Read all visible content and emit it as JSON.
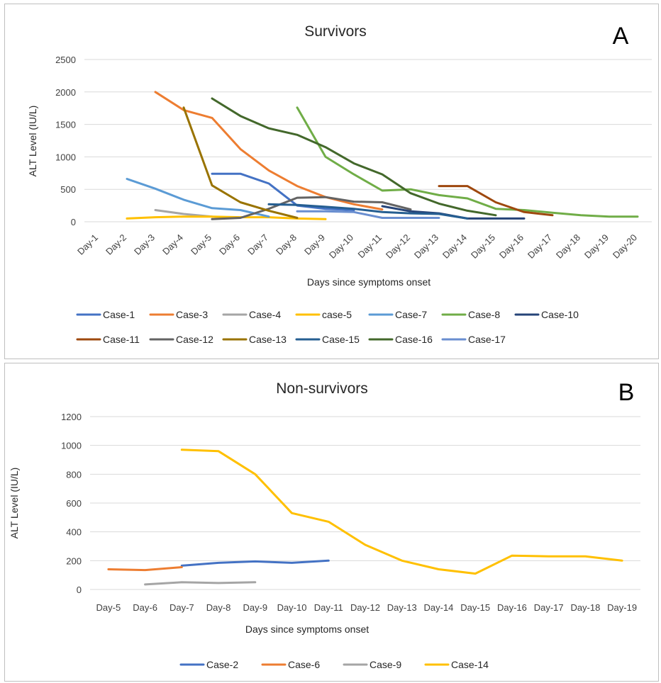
{
  "chart_data": [
    {
      "type": "line",
      "panel_letter": "A",
      "title": "Survivors",
      "xlabel": "Days since symptoms onset",
      "ylabel": "ALT Level (IU/L)",
      "ylim": [
        0,
        2500
      ],
      "yticks": [
        0,
        500,
        1000,
        1500,
        2000,
        2500
      ],
      "grid": true,
      "legend_position": "bottom",
      "categories": [
        "Day-1",
        "Day-2",
        "Day-3",
        "Day-4",
        "Day-5",
        "Day-6",
        "Day-7",
        "Day-8",
        "Day-9",
        "Day-10",
        "Day-11",
        "Day-12",
        "Day-13",
        "Day-14",
        "Day-15",
        "Day-16",
        "Day-17",
        "Day-18",
        "Day-19",
        "Day-20"
      ],
      "series": [
        {
          "name": "Case-1",
          "color": "#4472c4",
          "values": [
            null,
            null,
            null,
            null,
            740,
            740,
            590,
            250,
            200,
            180,
            null,
            null,
            null,
            null,
            null,
            null,
            null,
            null,
            null,
            null
          ]
        },
        {
          "name": "Case-3",
          "color": "#ed7d31",
          "values": [
            null,
            null,
            2000,
            1720,
            1600,
            1120,
            790,
            550,
            380,
            270,
            190,
            null,
            null,
            null,
            null,
            null,
            null,
            null,
            null,
            null
          ]
        },
        {
          "name": "Case-4",
          "color": "#a5a5a5",
          "values": [
            null,
            null,
            180,
            120,
            80,
            null,
            null,
            null,
            null,
            null,
            null,
            null,
            null,
            null,
            null,
            null,
            null,
            null,
            null,
            null
          ]
        },
        {
          "name": "case-5",
          "color": "#ffc000",
          "values": [
            null,
            50,
            70,
            80,
            80,
            70,
            70,
            50,
            40,
            null,
            null,
            null,
            null,
            null,
            null,
            null,
            null,
            null,
            null,
            null
          ]
        },
        {
          "name": "Case-7",
          "color": "#5b9bd5",
          "values": [
            null,
            660,
            510,
            340,
            210,
            180,
            80,
            null,
            null,
            null,
            null,
            null,
            null,
            null,
            null,
            null,
            null,
            null,
            null,
            null
          ]
        },
        {
          "name": "Case-8",
          "color": "#70ad47",
          "values": [
            null,
            null,
            null,
            null,
            null,
            null,
            null,
            1760,
            1000,
            730,
            480,
            500,
            410,
            360,
            200,
            180,
            140,
            100,
            80,
            80
          ]
        },
        {
          "name": "Case-10",
          "color": "#264478",
          "values": [
            null,
            null,
            null,
            null,
            null,
            null,
            null,
            null,
            null,
            null,
            240,
            160,
            130,
            50,
            50,
            50,
            null,
            null,
            null,
            null
          ]
        },
        {
          "name": "Case-11",
          "color": "#9e480e",
          "values": [
            null,
            null,
            null,
            null,
            null,
            null,
            null,
            null,
            null,
            null,
            null,
            null,
            550,
            550,
            300,
            150,
            100,
            null,
            null,
            null
          ]
        },
        {
          "name": "Case-12",
          "color": "#636363",
          "values": [
            null,
            null,
            null,
            null,
            40,
            60,
            200,
            370,
            380,
            310,
            300,
            190,
            null,
            null,
            null,
            null,
            null,
            null,
            null,
            null
          ]
        },
        {
          "name": "Case-13",
          "color": "#997300",
          "values": [
            null,
            null,
            null,
            1760,
            560,
            300,
            170,
            60,
            null,
            null,
            null,
            null,
            null,
            null,
            null,
            null,
            null,
            null,
            null,
            null
          ]
        },
        {
          "name": "Case-15",
          "color": "#255e91",
          "values": [
            null,
            null,
            null,
            null,
            null,
            null,
            270,
            260,
            230,
            200,
            150,
            130,
            120,
            50,
            null,
            null,
            null,
            null,
            null,
            null
          ]
        },
        {
          "name": "Case-16",
          "color": "#43682b",
          "values": [
            null,
            null,
            null,
            null,
            1900,
            1630,
            1440,
            1340,
            1150,
            900,
            730,
            440,
            280,
            170,
            100,
            null,
            null,
            null,
            null,
            null
          ]
        },
        {
          "name": "Case-17",
          "color": "#698ed0",
          "values": [
            null,
            null,
            null,
            null,
            null,
            null,
            null,
            160,
            160,
            150,
            60,
            60,
            60,
            null,
            null,
            null,
            null,
            null,
            null,
            null
          ]
        }
      ]
    },
    {
      "type": "line",
      "panel_letter": "B",
      "title": "Non-survivors",
      "xlabel": "Days since symptoms onset",
      "ylabel": "ALT Level (IU/L)",
      "ylim": [
        0,
        1200
      ],
      "yticks": [
        0,
        200,
        400,
        600,
        800,
        1000,
        1200
      ],
      "grid": true,
      "legend_position": "bottom",
      "categories": [
        "Day-5",
        "Day-6",
        "Day-7",
        "Day-8",
        "Day-9",
        "Day-10",
        "Day-11",
        "Day-12",
        "Day-13",
        "Day-14",
        "Day-15",
        "Day-16",
        "Day-17",
        "Day-18",
        "Day-19"
      ],
      "series": [
        {
          "name": "Case-2",
          "color": "#4472c4",
          "values": [
            null,
            null,
            165,
            185,
            195,
            185,
            200,
            null,
            null,
            null,
            null,
            null,
            null,
            null,
            null
          ]
        },
        {
          "name": "Case-6",
          "color": "#ed7d31",
          "values": [
            140,
            135,
            155,
            null,
            null,
            null,
            null,
            null,
            null,
            null,
            null,
            null,
            null,
            null,
            null
          ]
        },
        {
          "name": "Case-9",
          "color": "#a5a5a5",
          "values": [
            null,
            35,
            50,
            45,
            50,
            null,
            null,
            null,
            null,
            null,
            null,
            null,
            null,
            null,
            null
          ]
        },
        {
          "name": "Case-14",
          "color": "#ffc000",
          "values": [
            null,
            null,
            970,
            960,
            800,
            530,
            470,
            310,
            200,
            140,
            110,
            235,
            230,
            230,
            200
          ]
        }
      ]
    }
  ]
}
